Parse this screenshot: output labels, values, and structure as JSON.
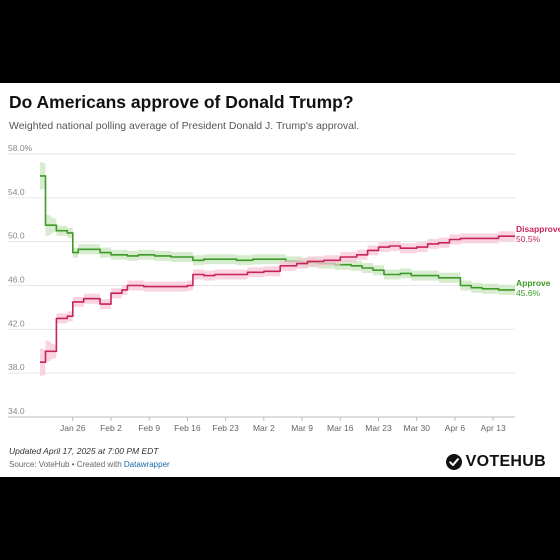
{
  "title": "Do Americans approve of Donald Trump?",
  "subtitle": "Weighted national polling average of President Donald J. Trump's approval.",
  "notes": "Updated April 17, 2025 at 7:00 PM EDT",
  "source": {
    "prefix": "Source: VoteHub • Created with ",
    "credit": "Datawrapper"
  },
  "brand": {
    "name": "VOTEHUB",
    "icon": "check-circle-icon"
  },
  "colors": {
    "approve": "#3c9a26",
    "approve_band": "#c9e6bd",
    "disapprove": "#c7245c",
    "disapprove_band": "#f8c6d6",
    "grid": "#e6e6e6",
    "tick_text": "#888888"
  },
  "chart_data": {
    "type": "line",
    "title": "Do Americans approve of Donald Trump?",
    "xlabel": "",
    "ylabel": "",
    "x_range": [
      "2025-01-20",
      "2025-04-17"
    ],
    "ylim": [
      34.0,
      58.0
    ],
    "grid": true,
    "legend": "direct labels at right end of each line",
    "y_ticks": [
      {
        "value": 34,
        "label": "34.0"
      },
      {
        "value": 38,
        "label": "38.0"
      },
      {
        "value": 42,
        "label": "42.0"
      },
      {
        "value": 46,
        "label": "46.0"
      },
      {
        "value": 50,
        "label": "50.0"
      },
      {
        "value": 54,
        "label": "54.0"
      },
      {
        "value": 58,
        "label": "58.0%"
      }
    ],
    "x_ticks": [
      {
        "date": "2025-01-26",
        "label": "Jan 26"
      },
      {
        "date": "2025-02-02",
        "label": "Feb 2"
      },
      {
        "date": "2025-02-09",
        "label": "Feb 9"
      },
      {
        "date": "2025-02-16",
        "label": "Feb 16"
      },
      {
        "date": "2025-02-23",
        "label": "Feb 23"
      },
      {
        "date": "2025-03-02",
        "label": "Mar 2"
      },
      {
        "date": "2025-03-09",
        "label": "Mar 9"
      },
      {
        "date": "2025-03-16",
        "label": "Mar 16"
      },
      {
        "date": "2025-03-23",
        "label": "Mar 23"
      },
      {
        "date": "2025-03-30",
        "label": "Mar 30"
      },
      {
        "date": "2025-04-06",
        "label": "Apr 6"
      },
      {
        "date": "2025-04-13",
        "label": "Apr 13"
      }
    ],
    "series": [
      {
        "name": "Approve",
        "end_label": "45.6%",
        "points": [
          [
            "2025-01-20",
            56.0
          ],
          [
            "2025-01-21",
            51.5
          ],
          [
            "2025-01-22",
            51.5
          ],
          [
            "2025-01-23",
            51.0
          ],
          [
            "2025-01-24",
            51.0
          ],
          [
            "2025-01-25",
            50.8
          ],
          [
            "2025-01-26",
            49.0
          ],
          [
            "2025-01-27",
            49.3
          ],
          [
            "2025-01-29",
            49.3
          ],
          [
            "2025-01-31",
            49.0
          ],
          [
            "2025-02-02",
            48.8
          ],
          [
            "2025-02-05",
            48.7
          ],
          [
            "2025-02-07",
            48.8
          ],
          [
            "2025-02-10",
            48.7
          ],
          [
            "2025-02-13",
            48.6
          ],
          [
            "2025-02-16",
            48.6
          ],
          [
            "2025-02-17",
            48.3
          ],
          [
            "2025-02-19",
            48.4
          ],
          [
            "2025-02-22",
            48.4
          ],
          [
            "2025-02-25",
            48.3
          ],
          [
            "2025-02-28",
            48.4
          ],
          [
            "2025-03-03",
            48.4
          ],
          [
            "2025-03-06",
            48.2
          ],
          [
            "2025-03-09",
            48.1
          ],
          [
            "2025-03-12",
            48.0
          ],
          [
            "2025-03-15",
            47.9
          ],
          [
            "2025-03-18",
            47.8
          ],
          [
            "2025-03-20",
            47.6
          ],
          [
            "2025-03-22",
            47.4
          ],
          [
            "2025-03-24",
            47.0
          ],
          [
            "2025-03-27",
            47.1
          ],
          [
            "2025-03-29",
            46.9
          ],
          [
            "2025-04-01",
            46.9
          ],
          [
            "2025-04-03",
            46.7
          ],
          [
            "2025-04-05",
            46.7
          ],
          [
            "2025-04-07",
            46.0
          ],
          [
            "2025-04-09",
            45.8
          ],
          [
            "2025-04-11",
            45.7
          ],
          [
            "2025-04-14",
            45.6
          ],
          [
            "2025-04-17",
            45.6
          ]
        ]
      },
      {
        "name": "Disapprove",
        "end_label": "50.5%",
        "points": [
          [
            "2025-01-20",
            39.0
          ],
          [
            "2025-01-21",
            40.0
          ],
          [
            "2025-01-22",
            40.0
          ],
          [
            "2025-01-23",
            43.0
          ],
          [
            "2025-01-25",
            43.2
          ],
          [
            "2025-01-26",
            44.5
          ],
          [
            "2025-01-28",
            44.8
          ],
          [
            "2025-01-30",
            44.8
          ],
          [
            "2025-01-31",
            44.3
          ],
          [
            "2025-02-02",
            45.3
          ],
          [
            "2025-02-04",
            45.6
          ],
          [
            "2025-02-05",
            46.0
          ],
          [
            "2025-02-08",
            45.9
          ],
          [
            "2025-02-11",
            45.9
          ],
          [
            "2025-02-14",
            45.9
          ],
          [
            "2025-02-16",
            46.0
          ],
          [
            "2025-02-17",
            47.0
          ],
          [
            "2025-02-19",
            46.9
          ],
          [
            "2025-02-21",
            47.0
          ],
          [
            "2025-02-24",
            47.0
          ],
          [
            "2025-02-27",
            47.2
          ],
          [
            "2025-03-02",
            47.3
          ],
          [
            "2025-03-05",
            47.8
          ],
          [
            "2025-03-08",
            48.0
          ],
          [
            "2025-03-10",
            48.2
          ],
          [
            "2025-03-13",
            48.3
          ],
          [
            "2025-03-16",
            48.6
          ],
          [
            "2025-03-19",
            48.8
          ],
          [
            "2025-03-21",
            49.2
          ],
          [
            "2025-03-23",
            49.5
          ],
          [
            "2025-03-25",
            49.6
          ],
          [
            "2025-03-27",
            49.4
          ],
          [
            "2025-03-30",
            49.5
          ],
          [
            "2025-04-01",
            49.8
          ],
          [
            "2025-04-03",
            49.9
          ],
          [
            "2025-04-05",
            50.2
          ],
          [
            "2025-04-07",
            50.3
          ],
          [
            "2025-04-09",
            50.3
          ],
          [
            "2025-04-11",
            50.3
          ],
          [
            "2025-04-14",
            50.5
          ],
          [
            "2025-04-17",
            50.5
          ]
        ]
      }
    ]
  }
}
